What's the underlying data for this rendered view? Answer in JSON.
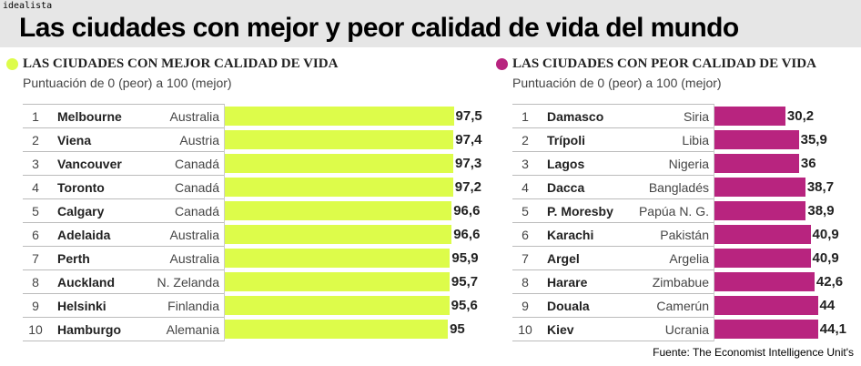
{
  "brand": "idealista",
  "title": "Las ciudades con mejor y peor calidad de vida del mundo",
  "source": "Fuente: The Economist Intelligence Unit's",
  "chart_data": [
    {
      "type": "bar",
      "orientation": "horizontal",
      "title": "LAS CIUDADES CON MEJOR CALIDAD DE VIDA",
      "subtitle": "Puntuación de 0 (peor) a 100 (mejor)",
      "color": "#ddfc4a",
      "xlim": [
        0,
        100
      ],
      "rows": [
        {
          "rank": "1",
          "city": "Melbourne",
          "country": "Australia",
          "value": 97.5,
          "label": "97,5"
        },
        {
          "rank": "2",
          "city": "Viena",
          "country": "Austria",
          "value": 97.4,
          "label": "97,4"
        },
        {
          "rank": "3",
          "city": "Vancouver",
          "country": "Canadá",
          "value": 97.3,
          "label": "97,3"
        },
        {
          "rank": "4",
          "city": "Toronto",
          "country": "Canadá",
          "value": 97.2,
          "label": "97,2"
        },
        {
          "rank": "5",
          "city": "Calgary",
          "country": "Canadá",
          "value": 96.6,
          "label": "96,6"
        },
        {
          "rank": "6",
          "city": "Adelaida",
          "country": "Australia",
          "value": 96.6,
          "label": "96,6"
        },
        {
          "rank": "7",
          "city": "Perth",
          "country": "Australia",
          "value": 95.9,
          "label": "95,9"
        },
        {
          "rank": "8",
          "city": "Auckland",
          "country": "N. Zelanda",
          "value": 95.7,
          "label": "95,7"
        },
        {
          "rank": "9",
          "city": "Helsinki",
          "country": "Finlandia",
          "value": 95.6,
          "label": "95,6"
        },
        {
          "rank": "10",
          "city": "Hamburgo",
          "country": "Alemania",
          "value": 95,
          "label": "95"
        }
      ]
    },
    {
      "type": "bar",
      "orientation": "horizontal",
      "title": "LAS CIUDADES CON PEOR CALIDAD DE VIDA",
      "subtitle": "Puntuación de 0 (peor) a 100 (mejor)",
      "color": "#b8247f",
      "xlim": [
        0,
        100
      ],
      "rows": [
        {
          "rank": "1",
          "city": "Damasco",
          "country": "Siria",
          "value": 30.2,
          "label": "30,2"
        },
        {
          "rank": "2",
          "city": "Trípoli",
          "country": "Libia",
          "value": 35.9,
          "label": "35,9"
        },
        {
          "rank": "3",
          "city": "Lagos",
          "country": "Nigeria",
          "value": 36,
          "label": "36"
        },
        {
          "rank": "4",
          "city": "Dacca",
          "country": "Bangladés",
          "value": 38.7,
          "label": "38,7"
        },
        {
          "rank": "5",
          "city": "P. Moresby",
          "country": "Papúa N. G.",
          "value": 38.9,
          "label": "38,9"
        },
        {
          "rank": "6",
          "city": "Karachi",
          "country": "Pakistán",
          "value": 40.9,
          "label": "40,9"
        },
        {
          "rank": "7",
          "city": "Argel",
          "country": "Argelia",
          "value": 40.9,
          "label": "40,9"
        },
        {
          "rank": "8",
          "city": "Harare",
          "country": "Zimbabue",
          "value": 42.6,
          "label": "42,6"
        },
        {
          "rank": "9",
          "city": "Douala",
          "country": "Camerún",
          "value": 44,
          "label": "44"
        },
        {
          "rank": "10",
          "city": "Kiev",
          "country": "Ucrania",
          "value": 44.1,
          "label": "44,1"
        }
      ]
    }
  ]
}
